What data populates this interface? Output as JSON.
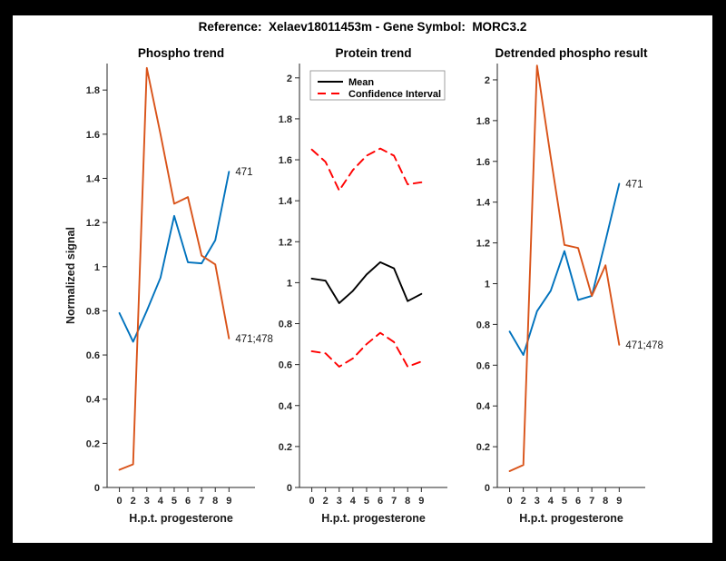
{
  "figure": {
    "title": "Reference:  Xelaev18011453m - Gene Symbol:  MORC3.2",
    "background_color": "#000000",
    "canvas_color": "#ffffff",
    "axis_color": "#262626"
  },
  "chart_data": [
    {
      "type": "line",
      "title": "Phospho trend",
      "xlabel": "H.p.t. progesterone",
      "ylabel": "Normalized signal",
      "x_tick_labels": [
        "0",
        "2",
        "3",
        "4",
        "5",
        "6",
        "7",
        "8",
        "9"
      ],
      "y_tick_values": [
        0,
        0.2,
        0.4,
        0.6,
        0.8,
        1,
        1.2,
        1.4,
        1.6,
        1.8
      ],
      "y_tick_labels": [
        "0",
        "0.2",
        "0.4",
        "0.6",
        "0.8",
        "1",
        "1.2",
        "1.4",
        "1.6",
        "1.8"
      ],
      "ylim": [
        0,
        1.92
      ],
      "grid": false,
      "series": [
        {
          "name": "471",
          "color": "#0072BD",
          "style": "solid",
          "end_label": "471",
          "values": [
            0.79,
            0.66,
            0.8,
            0.95,
            1.23,
            1.02,
            1.015,
            1.12,
            1.43
          ]
        },
        {
          "name": "471;478",
          "color": "#D95319",
          "style": "solid",
          "end_label": "471;478",
          "values": [
            0.08,
            0.105,
            1.9,
            1.6,
            1.285,
            1.315,
            1.05,
            1.01,
            0.675
          ]
        }
      ]
    },
    {
      "type": "line",
      "title": "Protein trend",
      "xlabel": "H.p.t. progesterone",
      "ylabel": "",
      "x_tick_labels": [
        "0",
        "2",
        "3",
        "4",
        "5",
        "6",
        "7",
        "8",
        "9"
      ],
      "y_tick_values": [
        0,
        0.2,
        0.4,
        0.6,
        0.8,
        1,
        1.2,
        1.4,
        1.6,
        1.8,
        2
      ],
      "y_tick_labels": [
        "0",
        "0.2",
        "0.4",
        "0.6",
        "0.8",
        "1",
        "1.2",
        "1.4",
        "1.6",
        "1.8",
        "2"
      ],
      "ylim": [
        0,
        2.07
      ],
      "grid": false,
      "legend": {
        "position": "northwest",
        "entries": [
          {
            "label": "Mean",
            "color": "#000000",
            "style": "solid"
          },
          {
            "label": "Confidence Interval",
            "color": "#FF0000",
            "style": "dashed"
          }
        ]
      },
      "series": [
        {
          "name": "Mean",
          "color": "#000000",
          "style": "solid",
          "values": [
            1.02,
            1.01,
            0.9,
            0.96,
            1.04,
            1.1,
            1.07,
            0.91,
            0.945
          ]
        },
        {
          "name": "Confidence Interval upper",
          "color": "#FF0000",
          "style": "dashed",
          "values": [
            1.65,
            1.59,
            1.45,
            1.55,
            1.62,
            1.655,
            1.62,
            1.48,
            1.49
          ]
        },
        {
          "name": "Confidence Interval lower",
          "color": "#FF0000",
          "style": "dashed",
          "values": [
            0.665,
            0.655,
            0.59,
            0.63,
            0.7,
            0.755,
            0.71,
            0.59,
            0.615
          ]
        }
      ]
    },
    {
      "type": "line",
      "title": "Detrended phospho result",
      "xlabel": "H.p.t. progesterone",
      "ylabel": "",
      "x_tick_labels": [
        "0",
        "2",
        "3",
        "4",
        "5",
        "6",
        "7",
        "8",
        "9"
      ],
      "y_tick_values": [
        0,
        0.2,
        0.4,
        0.6,
        0.8,
        1,
        1.2,
        1.4,
        1.6,
        1.8,
        2
      ],
      "y_tick_labels": [
        "0",
        "0.2",
        "0.4",
        "0.6",
        "0.8",
        "1",
        "1.2",
        "1.4",
        "1.6",
        "1.8",
        "2"
      ],
      "ylim": [
        0,
        2.08
      ],
      "grid": false,
      "series": [
        {
          "name": "471",
          "color": "#0072BD",
          "style": "solid",
          "end_label": "471",
          "values": [
            0.765,
            0.65,
            0.865,
            0.965,
            1.16,
            0.92,
            0.94,
            1.21,
            1.49
          ]
        },
        {
          "name": "471;478",
          "color": "#D95319",
          "style": "solid",
          "end_label": "471;478",
          "values": [
            0.08,
            0.11,
            2.07,
            1.62,
            1.19,
            1.175,
            0.94,
            1.09,
            0.7
          ]
        }
      ]
    }
  ]
}
